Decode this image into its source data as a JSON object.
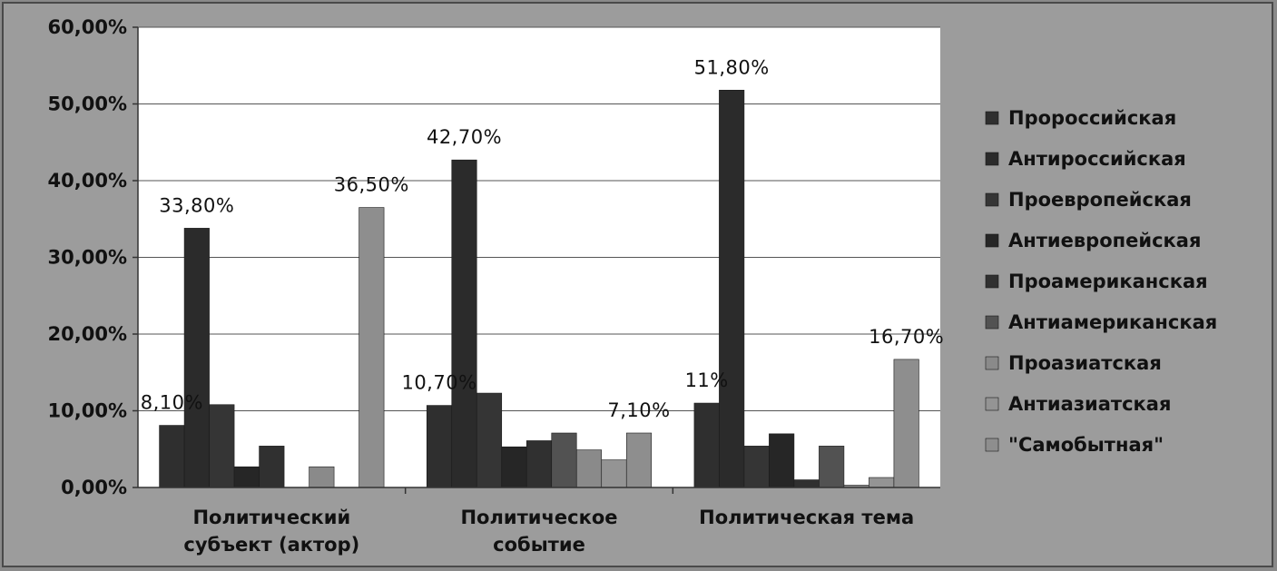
{
  "chart_data": {
    "type": "bar",
    "categories": [
      [
        "Политический",
        "субъект (актор)"
      ],
      [
        "Политическое",
        "событие"
      ],
      [
        "Политическая тема"
      ]
    ],
    "ylim": [
      0,
      60
    ],
    "yticks": [
      0,
      10,
      20,
      30,
      40,
      50,
      60
    ],
    "ytick_labels": [
      "0,00%",
      "10,00%",
      "20,00%",
      "30,00%",
      "40,00%",
      "50,00%",
      "60,00%"
    ],
    "grid": true,
    "legend_position": "right",
    "series": [
      {
        "name": "Пророссийская",
        "color": "#2f2f2f",
        "values": [
          8.1,
          10.7,
          11.0
        ]
      },
      {
        "name": "Антироссийская",
        "color": "#2b2b2b",
        "values": [
          33.8,
          42.7,
          51.8
        ]
      },
      {
        "name": "Проевропейская",
        "color": "#353535",
        "values": [
          10.8,
          12.3,
          5.4
        ]
      },
      {
        "name": "Антиевропейская",
        "color": "#262626",
        "values": [
          2.7,
          5.3,
          7.0
        ]
      },
      {
        "name": "Проамериканская",
        "color": "#303030",
        "values": [
          5.4,
          6.1,
          1.0
        ]
      },
      {
        "name": "Антиамериканская",
        "color": "#525252",
        "values": [
          0,
          7.1,
          5.4
        ]
      },
      {
        "name": "Проазиатская",
        "color": "#8a8a8a",
        "values": [
          2.7,
          4.9,
          0.3
        ]
      },
      {
        "name": "Антиазиатская",
        "color": "#949494",
        "values": [
          0,
          3.6,
          1.3
        ]
      },
      {
        "name": "\"Самобытная\"",
        "color": "#8e8e8e",
        "values": [
          36.5,
          7.1,
          16.7
        ]
      }
    ],
    "data_labels": [
      {
        "category": 0,
        "series": 0,
        "text": "8,10%"
      },
      {
        "category": 0,
        "series": 1,
        "text": "33,80%"
      },
      {
        "category": 0,
        "series": 8,
        "text": "36,50%"
      },
      {
        "category": 1,
        "series": 0,
        "text": "10,70%"
      },
      {
        "category": 1,
        "series": 1,
        "text": "42,70%"
      },
      {
        "category": 1,
        "series": 8,
        "text": "7,10%"
      },
      {
        "category": 2,
        "series": 0,
        "text": "11%"
      },
      {
        "category": 2,
        "series": 1,
        "text": "51,80%"
      },
      {
        "category": 2,
        "series": 8,
        "text": "16,70%"
      }
    ]
  }
}
